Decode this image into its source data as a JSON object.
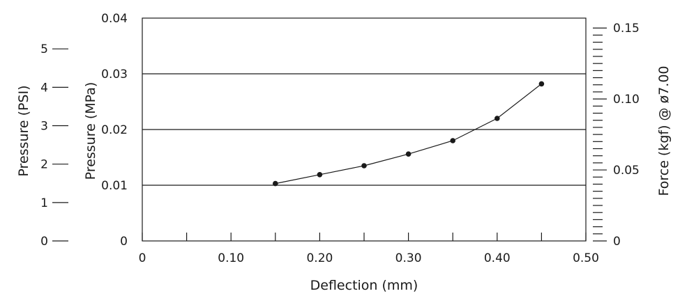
{
  "chart_data": {
    "type": "line",
    "title": "",
    "xlabel": "Deflection (mm)",
    "ylabel": "Pressure (MPa)",
    "ylabel_left_outer": "Pressure (PSI)",
    "ylabel_right": "Force (kgf) @ ø7.00",
    "xlim": [
      0,
      0.5
    ],
    "ylim": [
      0,
      0.04
    ],
    "x_ticks": [
      "0",
      "0.10",
      "0.20",
      "0.30",
      "0.40",
      "0.50"
    ],
    "y_ticks": [
      "0",
      "0.01",
      "0.02",
      "0.03",
      "0.04"
    ],
    "psi_ticks": [
      "0",
      "1",
      "2",
      "3",
      "4",
      "5"
    ],
    "psi_values": [
      0,
      1,
      2,
      3,
      4,
      5
    ],
    "force_ticks": [
      "0",
      "0.05",
      "0.10",
      "0.15"
    ],
    "force_values": [
      0,
      0.05,
      0.1,
      0.15
    ],
    "grid": "horizontal",
    "x": [
      0.15,
      0.2,
      0.25,
      0.3,
      0.35,
      0.4,
      0.45
    ],
    "series": [
      {
        "values": [
          0.0103,
          0.0119,
          0.0135,
          0.0156,
          0.018,
          0.022,
          0.0282
        ]
      }
    ]
  }
}
